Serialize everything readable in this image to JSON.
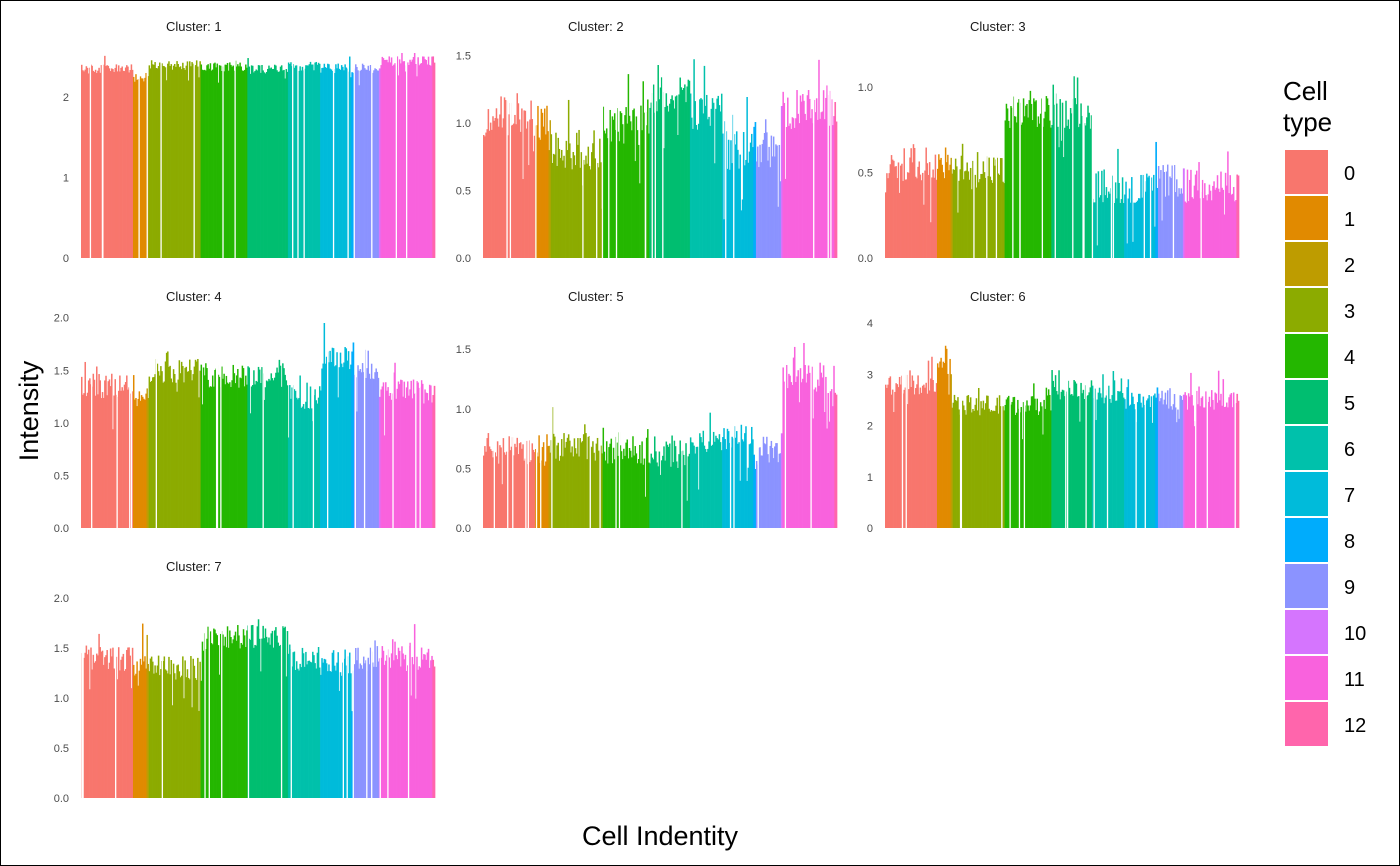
{
  "chart_data": {
    "type": "bar",
    "xlabel": "Cell Indentity",
    "ylabel": "Intensity",
    "legend": {
      "title": "Cell type",
      "placement": "right",
      "entries": [
        {
          "label": "0",
          "color": "#F8766D"
        },
        {
          "label": "1",
          "color": "#E18A00"
        },
        {
          "label": "2",
          "color": "#BE9C00"
        },
        {
          "label": "3",
          "color": "#8CAB00"
        },
        {
          "label": "4",
          "color": "#24B700"
        },
        {
          "label": "5",
          "color": "#00BE70"
        },
        {
          "label": "6",
          "color": "#00C1AB"
        },
        {
          "label": "7",
          "color": "#00BBDA"
        },
        {
          "label": "8",
          "color": "#00ACFC"
        },
        {
          "label": "9",
          "color": "#8B93FF"
        },
        {
          "label": "10",
          "color": "#D575FE"
        },
        {
          "label": "11",
          "color": "#F962DD"
        },
        {
          "label": "12",
          "color": "#FF65AC"
        }
      ]
    },
    "group_widths": [
      1,
      0.26,
      0.04,
      1.0,
      0.9,
      0.78,
      0.62,
      0.6,
      0.05,
      0.48,
      0.03,
      1.0,
      0.05
    ],
    "grid": false,
    "panels": [
      {
        "title": "Cluster: 1",
        "ylim": [
          0,
          2.55
        ],
        "yticks": [
          0,
          1,
          2
        ],
        "ytick_labels": [
          "0",
          "1",
          "2"
        ],
        "group_means": [
          2.35,
          2.25,
          2.3,
          2.4,
          2.38,
          2.35,
          2.38,
          2.36,
          2.33,
          2.35,
          2.38,
          2.45,
          2.45
        ],
        "noise": 0.06
      },
      {
        "title": "Cluster: 2",
        "ylim": [
          0,
          1.52
        ],
        "yticks": [
          0,
          0.5,
          1.0,
          1.5
        ],
        "ytick_labels": [
          "0.0",
          "0.5",
          "1.0",
          "1.5"
        ],
        "group_means": [
          1.05,
          1.0,
          0.95,
          0.8,
          0.98,
          1.2,
          1.1,
          0.8,
          1.1,
          0.8,
          1.2,
          1.1,
          1.1
        ],
        "noise": 0.15
      },
      {
        "title": "Cluster: 3",
        "ylim": [
          0,
          1.2
        ],
        "yticks": [
          0,
          0.5,
          1.0
        ],
        "ytick_labels": [
          "0.0",
          "0.5",
          "1.0"
        ],
        "group_means": [
          0.55,
          0.55,
          0.5,
          0.5,
          0.85,
          0.85,
          0.42,
          0.4,
          0.42,
          0.45,
          0.55,
          0.42,
          0.4
        ],
        "noise": 0.1
      },
      {
        "title": "Cluster: 4",
        "ylim": [
          0,
          1.95
        ],
        "yticks": [
          0,
          0.5,
          1.0,
          1.5,
          2.0
        ],
        "ytick_labels": [
          "0.0",
          "0.5",
          "1.0",
          "1.5",
          "2.0"
        ],
        "group_means": [
          1.35,
          1.25,
          1.3,
          1.5,
          1.45,
          1.45,
          1.25,
          1.6,
          1.7,
          1.5,
          1.2,
          1.3,
          1.3
        ],
        "noise": 0.12
      },
      {
        "title": "Cluster: 5",
        "ylim": [
          0,
          1.72
        ],
        "yticks": [
          0,
          0.5,
          1.0,
          1.5
        ],
        "ytick_labels": [
          "0.0",
          "0.5",
          "1.0",
          "1.5"
        ],
        "group_means": [
          0.65,
          0.62,
          0.65,
          0.68,
          0.65,
          0.62,
          0.7,
          0.75,
          0.6,
          0.65,
          0.75,
          1.25,
          1.2
        ],
        "noise": 0.12
      },
      {
        "title": "Cluster: 6",
        "ylim": [
          0,
          4.0
        ],
        "yticks": [
          0,
          1,
          2,
          3,
          4
        ],
        "ytick_labels": [
          "0",
          "1",
          "2",
          "3",
          "4"
        ],
        "group_means": [
          2.8,
          3.2,
          3.0,
          2.4,
          2.4,
          2.7,
          2.6,
          2.5,
          2.5,
          2.5,
          2.7,
          2.5,
          2.5
        ],
        "noise": 0.2
      },
      {
        "title": "Cluster: 7",
        "ylim": [
          0,
          2.05
        ],
        "yticks": [
          0,
          0.5,
          1.0,
          1.5,
          2.0
        ],
        "ytick_labels": [
          "0.0",
          "0.5",
          "1.0",
          "1.5",
          "2.0"
        ],
        "group_means": [
          1.4,
          1.35,
          1.35,
          1.3,
          1.6,
          1.6,
          1.4,
          1.35,
          1.3,
          1.4,
          1.4,
          1.4,
          1.35
        ],
        "noise": 0.13
      }
    ]
  }
}
